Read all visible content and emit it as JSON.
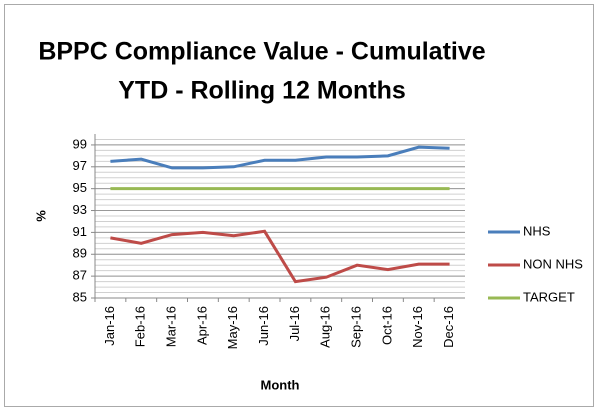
{
  "chart_data": {
    "type": "line",
    "title": [
      "BPPC Compliance Value - Cumulative",
      "YTD - Rolling 12 Months"
    ],
    "ylabel": "%",
    "xlabel": "Month",
    "categories": [
      "Jan-16",
      "Feb-16",
      "Mar-16",
      "Apr-16",
      "May-16",
      "Jun-16",
      "Jul-16",
      "Aug-16",
      "Sep-16",
      "Oct-16",
      "Nov-16",
      "Dec-16"
    ],
    "series": [
      {
        "name": "NHS",
        "color": "#4a7ebb",
        "values": [
          97.5,
          97.7,
          96.9,
          96.9,
          97.0,
          97.6,
          97.6,
          97.9,
          97.9,
          98.0,
          98.8,
          98.7
        ]
      },
      {
        "name": "NON NHS",
        "color": "#be4b48",
        "values": [
          90.5,
          90.0,
          90.8,
          91.0,
          90.7,
          91.1,
          86.5,
          86.9,
          88.0,
          87.6,
          88.1,
          88.1
        ]
      },
      {
        "name": "TARGET",
        "color": "#98b954",
        "values": [
          95,
          95,
          95,
          95,
          95,
          95,
          95,
          95,
          95,
          95,
          95,
          95
        ]
      }
    ],
    "ylim": [
      85,
      100
    ],
    "yticks": [
      85,
      87,
      89,
      91,
      93,
      95,
      97,
      99
    ],
    "grid": true,
    "minor_grid": 4,
    "legend": "right"
  }
}
